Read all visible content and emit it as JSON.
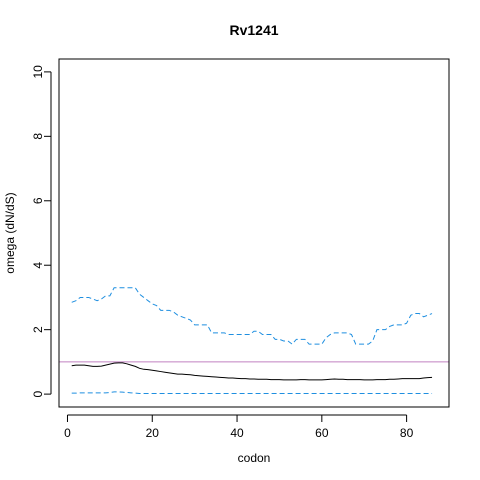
{
  "chart_data": {
    "type": "line",
    "title": "Rv1241",
    "xlabel": "codon",
    "ylabel": "omega (dN/dS)",
    "xlim": [
      -2,
      90
    ],
    "ylim": [
      -0.4,
      10.4
    ],
    "x_ticks": [
      0,
      20,
      40,
      60,
      80
    ],
    "y_ticks": [
      0,
      2,
      4,
      6,
      8,
      10
    ],
    "reference_line": {
      "y": 1,
      "color": "#c080c0"
    },
    "series": [
      {
        "style": "dashed",
        "color": "#1f8fe0",
        "x": [
          1,
          2,
          3,
          4,
          5,
          6,
          7,
          8,
          9,
          10,
          11,
          12,
          13,
          14,
          15,
          16,
          17,
          18,
          19,
          20,
          21,
          22,
          23,
          24,
          25,
          26,
          27,
          28,
          29,
          30,
          31,
          32,
          33,
          34,
          35,
          36,
          37,
          38,
          39,
          40,
          41,
          42,
          43,
          44,
          45,
          46,
          47,
          48,
          49,
          50,
          51,
          52,
          53,
          54,
          55,
          56,
          57,
          58,
          59,
          60,
          61,
          62,
          63,
          64,
          65,
          66,
          67,
          68,
          69,
          70,
          71,
          72,
          73,
          74,
          75,
          76,
          77,
          78,
          79,
          80,
          81,
          82,
          83,
          84,
          85,
          86
        ],
        "y": [
          2.85,
          2.9,
          3.0,
          3.0,
          3.0,
          2.95,
          2.9,
          2.95,
          3.05,
          3.05,
          3.3,
          3.3,
          3.3,
          3.3,
          3.3,
          3.3,
          3.1,
          3.0,
          2.9,
          2.8,
          2.75,
          2.6,
          2.6,
          2.6,
          2.55,
          2.45,
          2.4,
          2.35,
          2.3,
          2.15,
          2.15,
          2.15,
          2.15,
          1.9,
          1.9,
          1.9,
          1.9,
          1.85,
          1.85,
          1.85,
          1.85,
          1.85,
          1.85,
          1.95,
          1.95,
          1.85,
          1.85,
          1.85,
          1.7,
          1.7,
          1.65,
          1.65,
          1.55,
          1.7,
          1.7,
          1.7,
          1.55,
          1.55,
          1.55,
          1.55,
          1.75,
          1.85,
          1.9,
          1.9,
          1.9,
          1.9,
          1.85,
          1.55,
          1.55,
          1.55,
          1.55,
          1.65,
          2.0,
          2.0,
          2.0,
          2.1,
          2.15,
          2.15,
          2.15,
          2.2,
          2.45,
          2.5,
          2.5,
          2.4,
          2.45,
          2.5
        ]
      },
      {
        "style": "solid",
        "color": "#000000",
        "x": [
          1,
          2,
          3,
          4,
          5,
          6,
          7,
          8,
          9,
          10,
          11,
          12,
          13,
          14,
          15,
          16,
          17,
          18,
          19,
          20,
          21,
          22,
          23,
          24,
          25,
          26,
          27,
          28,
          29,
          30,
          31,
          32,
          33,
          34,
          35,
          36,
          37,
          38,
          39,
          40,
          41,
          42,
          43,
          44,
          45,
          46,
          47,
          48,
          49,
          50,
          51,
          52,
          53,
          54,
          55,
          56,
          57,
          58,
          59,
          60,
          61,
          62,
          63,
          64,
          65,
          66,
          67,
          68,
          69,
          70,
          71,
          72,
          73,
          74,
          75,
          76,
          77,
          78,
          79,
          80,
          81,
          82,
          83,
          84,
          85,
          86
        ],
        "y": [
          0.88,
          0.9,
          0.9,
          0.9,
          0.88,
          0.86,
          0.86,
          0.87,
          0.9,
          0.93,
          0.96,
          0.97,
          0.97,
          0.94,
          0.9,
          0.86,
          0.8,
          0.77,
          0.76,
          0.74,
          0.72,
          0.7,
          0.68,
          0.66,
          0.64,
          0.62,
          0.62,
          0.61,
          0.6,
          0.58,
          0.57,
          0.56,
          0.55,
          0.54,
          0.53,
          0.52,
          0.51,
          0.5,
          0.5,
          0.49,
          0.48,
          0.48,
          0.47,
          0.47,
          0.46,
          0.46,
          0.46,
          0.45,
          0.45,
          0.45,
          0.44,
          0.44,
          0.44,
          0.44,
          0.45,
          0.45,
          0.44,
          0.44,
          0.44,
          0.44,
          0.45,
          0.46,
          0.47,
          0.46,
          0.46,
          0.45,
          0.45,
          0.45,
          0.45,
          0.44,
          0.44,
          0.44,
          0.45,
          0.45,
          0.45,
          0.46,
          0.46,
          0.47,
          0.48,
          0.48,
          0.48,
          0.48,
          0.48,
          0.5,
          0.51,
          0.52
        ]
      },
      {
        "style": "dashed",
        "color": "#1f8fe0",
        "x": [
          1,
          2,
          3,
          4,
          5,
          6,
          7,
          8,
          9,
          10,
          11,
          12,
          13,
          14,
          15,
          16,
          17,
          18,
          19,
          20,
          21,
          22,
          23,
          24,
          25,
          26,
          27,
          28,
          29,
          30,
          31,
          32,
          33,
          34,
          35,
          36,
          37,
          38,
          39,
          40,
          41,
          42,
          43,
          44,
          45,
          46,
          47,
          48,
          49,
          50,
          51,
          52,
          53,
          54,
          55,
          56,
          57,
          58,
          59,
          60,
          61,
          62,
          63,
          64,
          65,
          66,
          67,
          68,
          69,
          70,
          71,
          72,
          73,
          74,
          75,
          76,
          77,
          78,
          79,
          80,
          81,
          82,
          83,
          84,
          85,
          86
        ],
        "y": [
          0.03,
          0.03,
          0.04,
          0.04,
          0.04,
          0.04,
          0.04,
          0.04,
          0.04,
          0.05,
          0.07,
          0.07,
          0.06,
          0.05,
          0.04,
          0.03,
          0.02,
          0.02,
          0.02,
          0.02,
          0.02,
          0.02,
          0.02,
          0.02,
          0.02,
          0.02,
          0.02,
          0.02,
          0.02,
          0.02,
          0.02,
          0.02,
          0.02,
          0.02,
          0.02,
          0.02,
          0.02,
          0.02,
          0.02,
          0.02,
          0.02,
          0.02,
          0.02,
          0.02,
          0.02,
          0.02,
          0.02,
          0.02,
          0.02,
          0.02,
          0.02,
          0.02,
          0.02,
          0.02,
          0.02,
          0.02,
          0.02,
          0.02,
          0.02,
          0.02,
          0.02,
          0.02,
          0.02,
          0.02,
          0.02,
          0.02,
          0.02,
          0.02,
          0.02,
          0.02,
          0.02,
          0.02,
          0.02,
          0.02,
          0.02,
          0.02,
          0.02,
          0.02,
          0.02,
          0.02,
          0.02,
          0.02,
          0.02,
          0.02,
          0.02,
          0.02
        ]
      }
    ]
  }
}
